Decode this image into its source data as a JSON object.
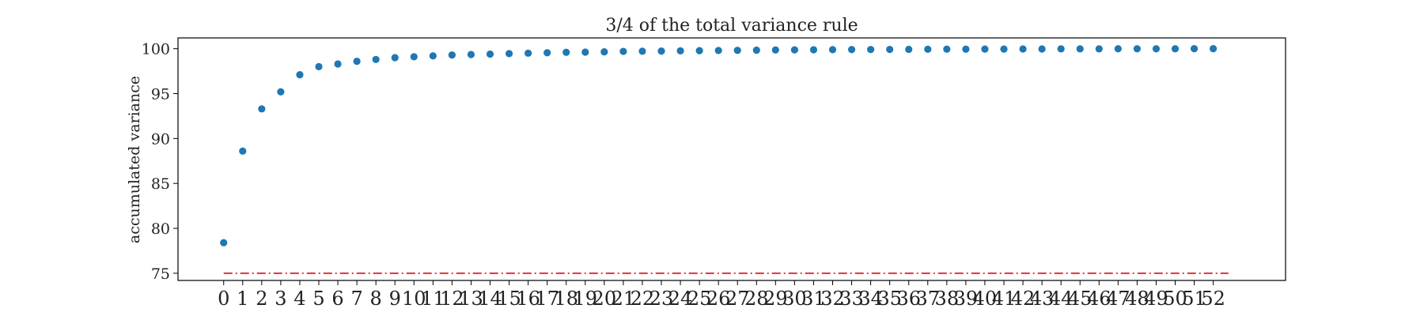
{
  "chart_data": {
    "type": "scatter",
    "title": "3/4 of the total variance rule",
    "xlabel": "",
    "ylabel": "accumulated variance",
    "grid": false,
    "x": [
      0,
      1,
      2,
      3,
      4,
      5,
      6,
      7,
      8,
      9,
      10,
      11,
      12,
      13,
      14,
      15,
      16,
      17,
      18,
      19,
      20,
      21,
      22,
      23,
      24,
      25,
      26,
      27,
      28,
      29,
      30,
      31,
      32,
      33,
      34,
      35,
      36,
      37,
      38,
      39,
      40,
      41,
      42,
      43,
      44,
      45,
      46,
      47,
      48,
      49,
      50,
      51,
      52
    ],
    "y": [
      78.4,
      88.6,
      93.3,
      95.2,
      97.1,
      98.0,
      98.3,
      98.6,
      98.8,
      99.0,
      99.1,
      99.2,
      99.3,
      99.35,
      99.4,
      99.45,
      99.5,
      99.55,
      99.6,
      99.62,
      99.65,
      99.7,
      99.72,
      99.74,
      99.76,
      99.78,
      99.8,
      99.82,
      99.84,
      99.86,
      99.87,
      99.88,
      99.89,
      99.9,
      99.91,
      99.92,
      99.93,
      99.94,
      99.95,
      99.95,
      99.96,
      99.96,
      99.97,
      99.97,
      99.98,
      99.98,
      99.98,
      99.99,
      99.99,
      99.99,
      99.99,
      100.0,
      100.0
    ],
    "xlim": [
      -2.4,
      55.8
    ],
    "ylim": [
      74.2,
      101.2
    ],
    "xticks": [
      0,
      1,
      2,
      3,
      4,
      5,
      6,
      7,
      8,
      9,
      10,
      11,
      12,
      13,
      14,
      15,
      16,
      17,
      18,
      19,
      20,
      21,
      22,
      23,
      24,
      25,
      26,
      27,
      28,
      29,
      30,
      31,
      32,
      33,
      34,
      35,
      36,
      37,
      38,
      39,
      40,
      41,
      42,
      43,
      44,
      45,
      46,
      47,
      48,
      49,
      50,
      51,
      52
    ],
    "yticks": [
      75,
      80,
      85,
      90,
      95,
      100
    ],
    "threshold": {
      "y": 75,
      "x_start": 0,
      "x_end": 52.8,
      "style": "dash-dot"
    },
    "colors": {
      "points": "#1f77b4",
      "threshold": "#e8191a"
    }
  }
}
